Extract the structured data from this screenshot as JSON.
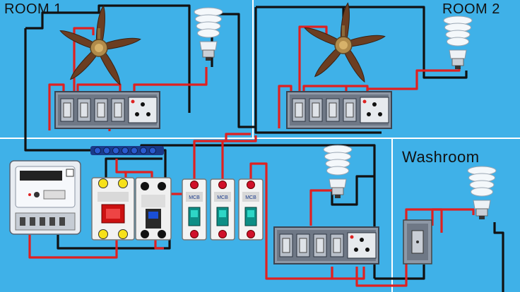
{
  "rooms": {
    "room1_label": "ROOM  1",
    "room2_label": "ROOM 2",
    "washroom_label": "Washroom"
  },
  "meter": {
    "display_digits": "8.8.8.8.8",
    "brand": "",
    "spec_line": ""
  },
  "breakers": {
    "main_label": "",
    "mcb_brand": "MCB",
    "count": 3
  },
  "colors": {
    "background": "#3fb1e8",
    "live_wire": "#e02020",
    "neutral_wire": "#111111",
    "room_divider": "#ffffff",
    "switch_plate": "#8e98a6",
    "terminal_red": "#d0102a",
    "terminal_yellow": "#f7e11a",
    "busbar": "#1a3a8a"
  },
  "components": [
    {
      "name": "ceiling-fan",
      "count": 2
    },
    {
      "name": "cfl-bulb",
      "count": 4
    },
    {
      "name": "switch-board",
      "count": 4
    },
    {
      "name": "energy-meter",
      "count": 1
    },
    {
      "name": "double-pole-breaker",
      "count": 1
    },
    {
      "name": "rccb",
      "count": 1
    },
    {
      "name": "mcb",
      "count": 3
    },
    {
      "name": "neutral-busbar",
      "count": 1
    }
  ]
}
